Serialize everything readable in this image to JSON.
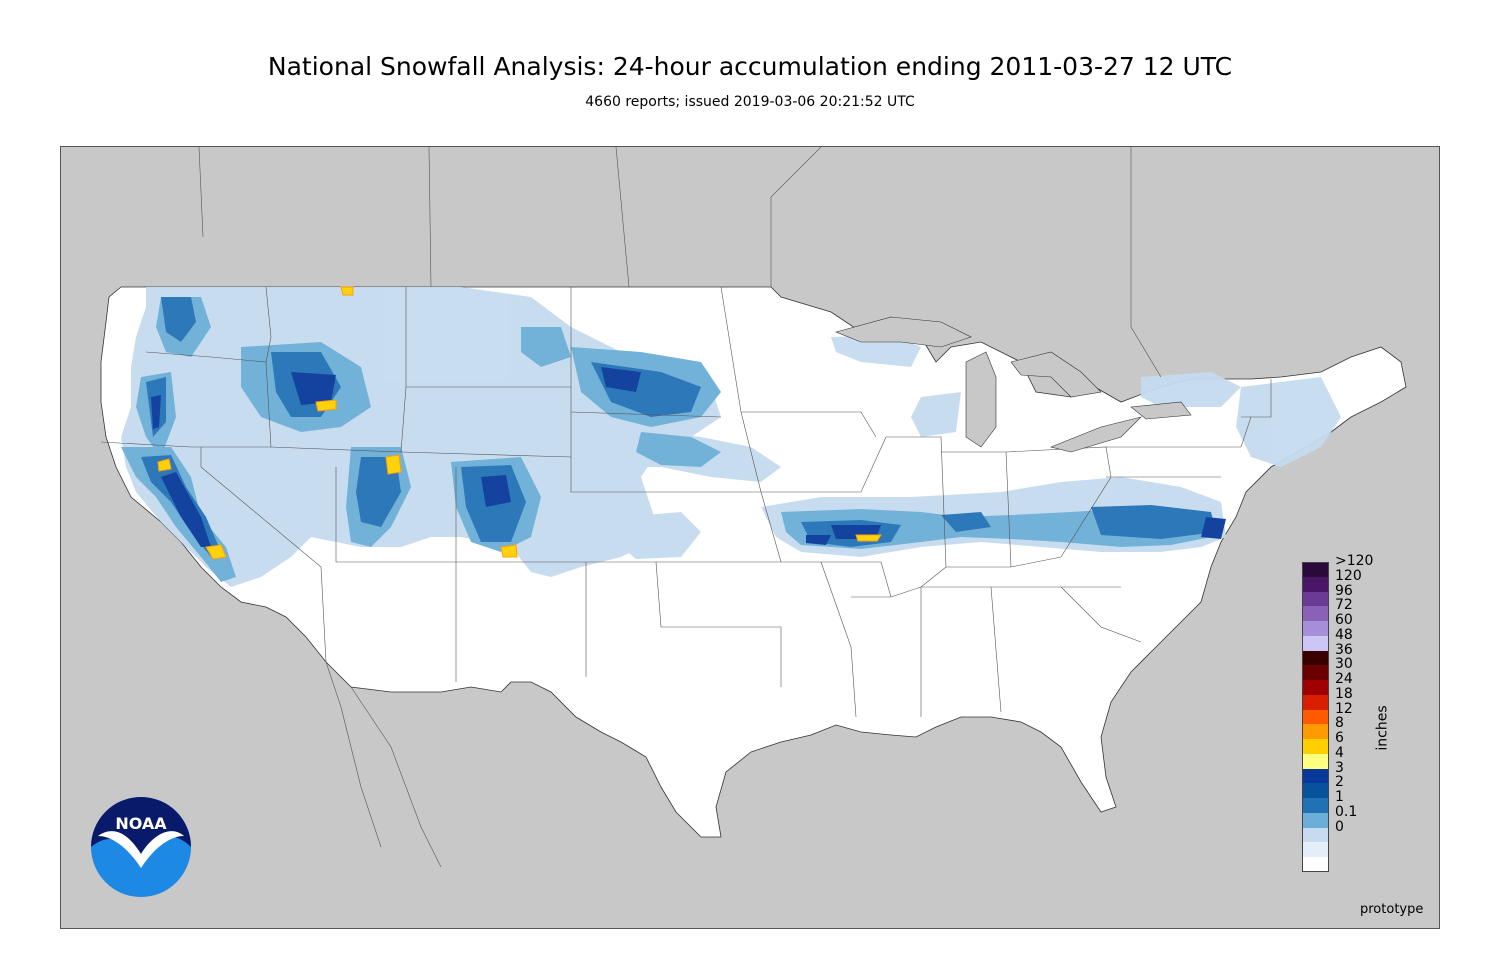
{
  "title": "National Snowfall Analysis: 24-hour accumulation ending 2011-03-27 12 UTC",
  "subtitle": "4660 reports; issued 2019-03-06 20:21:52 UTC",
  "footer_note": "prototype",
  "legend": {
    "units": "inches",
    "entries": [
      {
        "label": ">120",
        "color": "#2a0a3a"
      },
      {
        "label": "120",
        "color": "#4a1767"
      },
      {
        "label": "96",
        "color": "#6b3a94"
      },
      {
        "label": "72",
        "color": "#8a61b6"
      },
      {
        "label": "60",
        "color": "#a48fd8"
      },
      {
        "label": "48",
        "color": "#ccc6f5"
      },
      {
        "label": "36",
        "color": "#3a0000"
      },
      {
        "label": "30",
        "color": "#6b0000"
      },
      {
        "label": "24",
        "color": "#a00000"
      },
      {
        "label": "18",
        "color": "#d82000"
      },
      {
        "label": "12",
        "color": "#ff5a00"
      },
      {
        "label": "8",
        "color": "#ff9a00"
      },
      {
        "label": "6",
        "color": "#ffd000"
      },
      {
        "label": "4",
        "color": "#ffff80"
      },
      {
        "label": "3",
        "color": "#08389a"
      },
      {
        "label": "2",
        "color": "#08519c"
      },
      {
        "label": "1",
        "color": "#2171b5"
      },
      {
        "label": "0.1",
        "color": "#6baed6"
      },
      {
        "label": "0",
        "color": "#c6dbef"
      },
      {
        "label": "",
        "color": "#e4eef8"
      },
      {
        "label": "",
        "color": "#ffffff"
      }
    ]
  },
  "logo": {
    "text": "NOAA",
    "icon": "noaa-logo-icon"
  },
  "colors": {
    "background": "#c8c8c8",
    "land": "#ffffff",
    "border": "#444444"
  }
}
